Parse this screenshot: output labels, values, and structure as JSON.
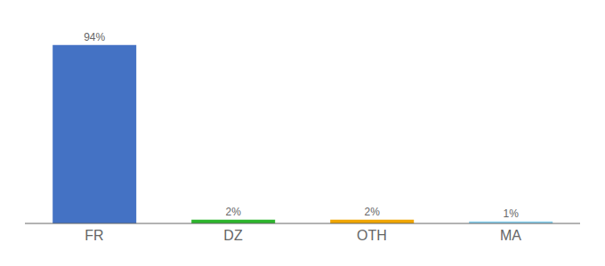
{
  "chart_data": {
    "type": "bar",
    "categories": [
      "FR",
      "DZ",
      "OTH",
      "MA"
    ],
    "values": [
      94,
      2,
      2,
      1
    ],
    "value_labels": [
      "94%",
      "2%",
      "2%",
      "1%"
    ],
    "colors": [
      "#4472c4",
      "#2db52d",
      "#f0a500",
      "#87ceeb"
    ],
    "ylim": [
      0,
      100
    ],
    "data_labels": true,
    "tick_labels": "x"
  }
}
